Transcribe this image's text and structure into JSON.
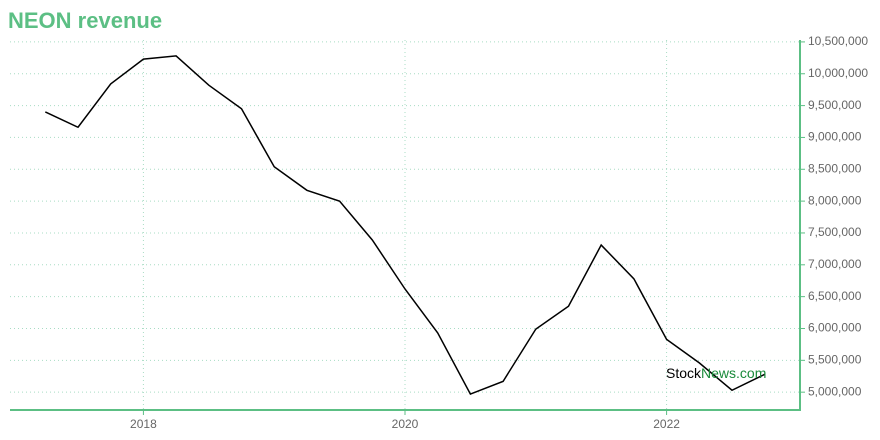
{
  "chart_data": {
    "type": "line",
    "title": "NEON revenue",
    "x": [
      2017.25,
      2017.5,
      2017.75,
      2018,
      2018.25,
      2018.5,
      2018.75,
      2019,
      2019.25,
      2019.5,
      2019.75,
      2020,
      2020.25,
      2020.5,
      2020.75,
      2021,
      2021.25,
      2021.5,
      2021.75,
      2022,
      2022.25,
      2022.5,
      2022.75
    ],
    "values": [
      9400000,
      9160000,
      9840000,
      10230000,
      10280000,
      9820000,
      9450000,
      8540000,
      8170000,
      8000000,
      7390000,
      6620000,
      5930000,
      4970000,
      5170000,
      5990000,
      6350000,
      7310000,
      6780000,
      5830000,
      5460000,
      5030000,
      5280000
    ],
    "color": "#000000",
    "xlim": [
      2016.98,
      2023.02
    ],
    "xticks": [
      2018,
      2020,
      2022
    ],
    "ylim": [
      4720000,
      10530000
    ],
    "yticks": [
      {
        "value": 5000000,
        "label": "5,000,000"
      },
      {
        "value": 5500000,
        "label": "5,500,000"
      },
      {
        "value": 6000000,
        "label": "6,000,000"
      },
      {
        "value": 6500000,
        "label": "6,500,000"
      },
      {
        "value": 7000000,
        "label": "7,000,000"
      },
      {
        "value": 7500000,
        "label": "7,500,000"
      },
      {
        "value": 8000000,
        "label": "8,000,000"
      },
      {
        "value": 8500000,
        "label": "8,500,000"
      },
      {
        "value": 9000000,
        "label": "9,000,000"
      },
      {
        "value": 9500000,
        "label": "9,500,000"
      },
      {
        "value": 10000000,
        "label": "10,000,000"
      },
      {
        "value": 10500000,
        "label": "10,500,000"
      }
    ],
    "grid": true,
    "axis_color": "#5cbf84",
    "watermark": [
      "Stock",
      "News.com"
    ]
  }
}
